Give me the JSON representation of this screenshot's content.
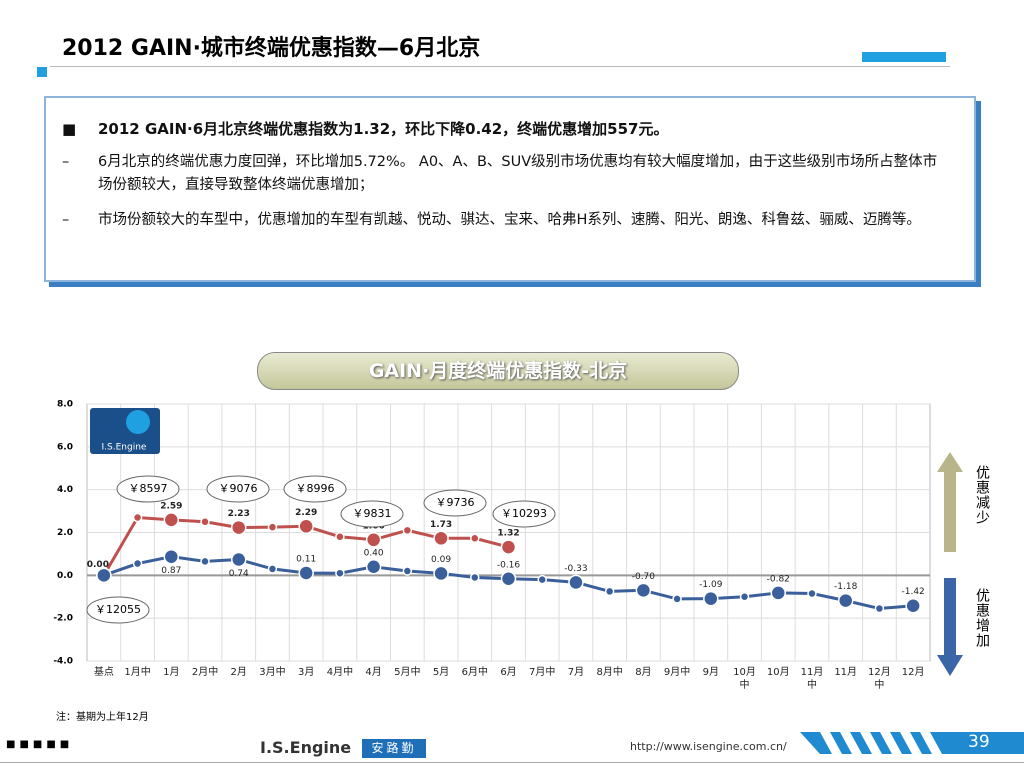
{
  "title": "2012 GAIN·城市终端优惠指数—6月北京",
  "summary": {
    "headline": "2012 GAIN·6月北京终端优惠指数为1.32，环比下降0.42，终端优惠增加557元。",
    "points": [
      "6月北京的终端优惠力度回弹，环比增加5.72%。 A0、A、B、SUV级别市场优惠均有较大幅度增加，由于这些级别市场所占整体市场份额较大，直接导致整体终端优惠增加；",
      "市场份额较大的车型中，优惠增加的车型有凯越、悦动、骐达、宝来、哈弗H系列、速腾、阳光、朗逸、科鲁兹、骊威、迈腾等。"
    ]
  },
  "chart_data": {
    "type": "line",
    "title": "GAIN·月度终端优惠指数-北京",
    "logo_text": "I.S.Engine",
    "categories": [
      "基点",
      "1月中",
      "1月",
      "2月中",
      "2月",
      "3月中",
      "3月",
      "4月中",
      "4月",
      "5月中",
      "5月",
      "6月中",
      "6月",
      "7月中",
      "7月",
      "8月中",
      "8月",
      "9月中",
      "9月",
      "10月中",
      "10月",
      "11月中",
      "11月",
      "12月中",
      "12月"
    ],
    "series": [
      {
        "color": "#c0504d",
        "values": [
          0.0,
          2.7,
          2.59,
          2.5,
          2.23,
          2.25,
          2.29,
          1.8,
          1.66,
          2.1,
          1.73,
          1.73,
          1.32,
          null,
          null,
          null,
          null,
          null,
          null,
          null,
          null,
          null,
          null,
          null,
          null
        ],
        "value_labels": [
          "0.00",
          null,
          "2.59",
          null,
          "2.23",
          null,
          "2.29",
          null,
          "1.66",
          null,
          "1.73",
          null,
          "1.32",
          null,
          null,
          null,
          null,
          null,
          null,
          null,
          null,
          null,
          null,
          null,
          null
        ]
      },
      {
        "color": "#3a5f9a",
        "values": [
          0.0,
          0.55,
          0.87,
          0.65,
          0.74,
          0.3,
          0.11,
          0.1,
          0.4,
          0.2,
          0.09,
          -0.1,
          -0.16,
          -0.2,
          -0.33,
          -0.75,
          -0.7,
          -1.1,
          -1.09,
          -1.0,
          -0.82,
          -0.85,
          -1.18,
          -1.55,
          -1.42
        ],
        "value_labels": [
          null,
          null,
          "0.87",
          null,
          "0.74",
          null,
          "0.11",
          null,
          "0.40",
          null,
          "0.09",
          null,
          "-0.16",
          null,
          "-0.33",
          null,
          "-0.70",
          null,
          "-1.09",
          null,
          "-0.82",
          null,
          "-1.18",
          null,
          "-1.42"
        ]
      }
    ],
    "ylim": [
      -4,
      8
    ],
    "yticks": [
      {
        "value": 8,
        "label": "8.0"
      },
      {
        "value": 6,
        "label": "6.0"
      },
      {
        "value": 4,
        "label": "4.0"
      },
      {
        "value": 2,
        "label": "2.0"
      },
      {
        "value": 0,
        "label": "0.0"
      },
      {
        "value": -2,
        "label": "-2.0"
      },
      {
        "value": -4,
        "label": "-4.0"
      }
    ],
    "grid": true,
    "annotations": [
      "￥8597",
      "￥9076",
      "￥8996",
      "￥9831",
      "￥9736",
      "￥10293",
      "￥12055"
    ],
    "arrow_labels": [
      "优惠减少",
      "优惠增加"
    ]
  },
  "note": "注：基期为上年12月",
  "footer": {
    "brand": "I.S.Engine",
    "brand_cn": "安路勤",
    "url": "http://www.isengine.com.cn/",
    "page": "39"
  }
}
